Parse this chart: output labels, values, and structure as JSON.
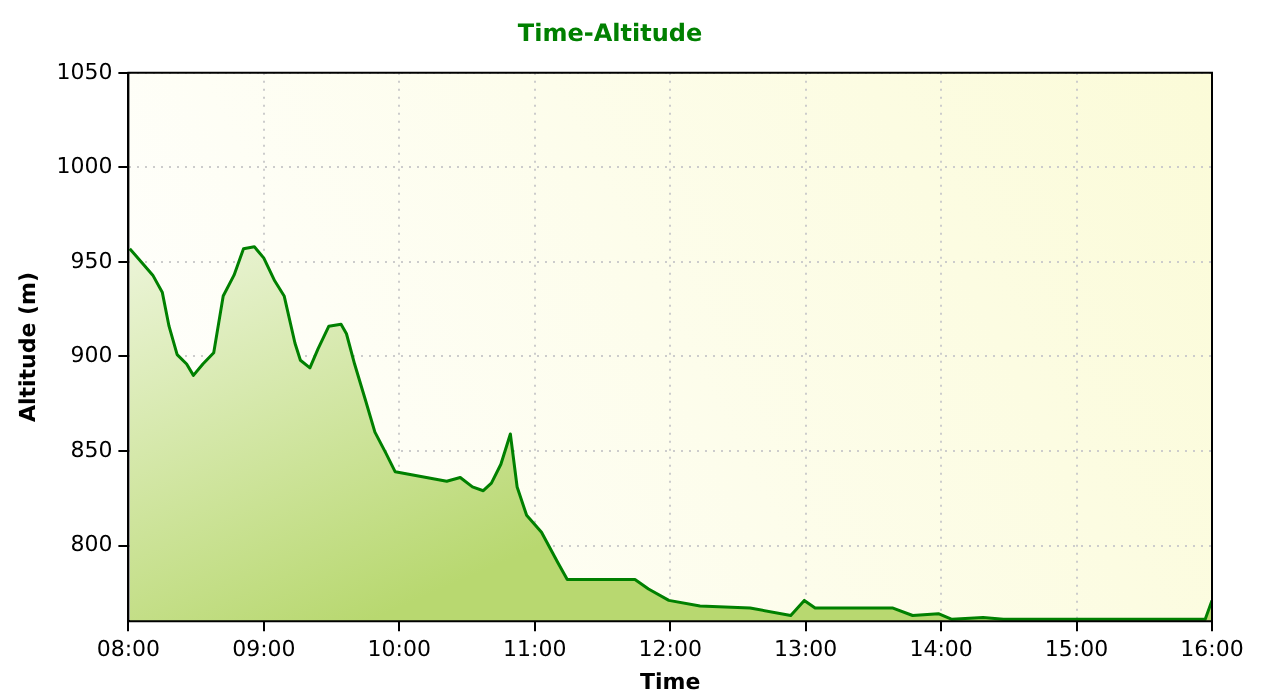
{
  "chart_data": {
    "type": "area",
    "title": "Time-Altitude",
    "xlabel": "Time",
    "ylabel": "Altitude (m)",
    "x": [
      8.01,
      8.18,
      8.25,
      8.3,
      8.36,
      8.43,
      8.48,
      8.55,
      8.63,
      8.7,
      8.78,
      8.85,
      8.93,
      9.0,
      9.08,
      9.15,
      9.23,
      9.27,
      9.34,
      9.4,
      9.48,
      9.57,
      9.61,
      9.67,
      9.75,
      9.82,
      9.9,
      9.97,
      10.12,
      10.35,
      10.45,
      10.54,
      10.62,
      10.68,
      10.75,
      10.82,
      10.87,
      10.94,
      11.05,
      11.17,
      11.24,
      11.74,
      11.84,
      11.99,
      12.22,
      12.59,
      12.89,
      12.99,
      13.07,
      13.64,
      13.79,
      13.98,
      14.08,
      14.31,
      14.46,
      15.95,
      16.0
    ],
    "series": [
      {
        "color": "#008000",
        "values": [
          957,
          943,
          934,
          916,
          901,
          896,
          890,
          896,
          902,
          932,
          943,
          957,
          958,
          952,
          940,
          932,
          907,
          898,
          894,
          904,
          916,
          917,
          912,
          896,
          877,
          860,
          849,
          839,
          837,
          834,
          836,
          831,
          829,
          833,
          843,
          859,
          831,
          816,
          807,
          791,
          782,
          782,
          777,
          771,
          768,
          767,
          763,
          771,
          767,
          767,
          763,
          764,
          761,
          762,
          761,
          761,
          771
        ]
      }
    ],
    "xlim": [
      8,
      16
    ],
    "xticks": [
      {
        "value": 8,
        "label": "08:00"
      },
      {
        "value": 9,
        "label": "09:00"
      },
      {
        "value": 10,
        "label": "10:00"
      },
      {
        "value": 11,
        "label": "11:00"
      },
      {
        "value": 12,
        "label": "12:00"
      },
      {
        "value": 13,
        "label": "13:00"
      },
      {
        "value": 14,
        "label": "14:00"
      },
      {
        "value": 15,
        "label": "15:00"
      },
      {
        "value": 16,
        "label": "16:00"
      }
    ],
    "ylim": [
      760,
      1050
    ],
    "yticks": [
      800,
      850,
      900,
      950,
      1000,
      1050
    ],
    "grid": true,
    "legend": false,
    "marker": "none",
    "line_style": "solid"
  }
}
